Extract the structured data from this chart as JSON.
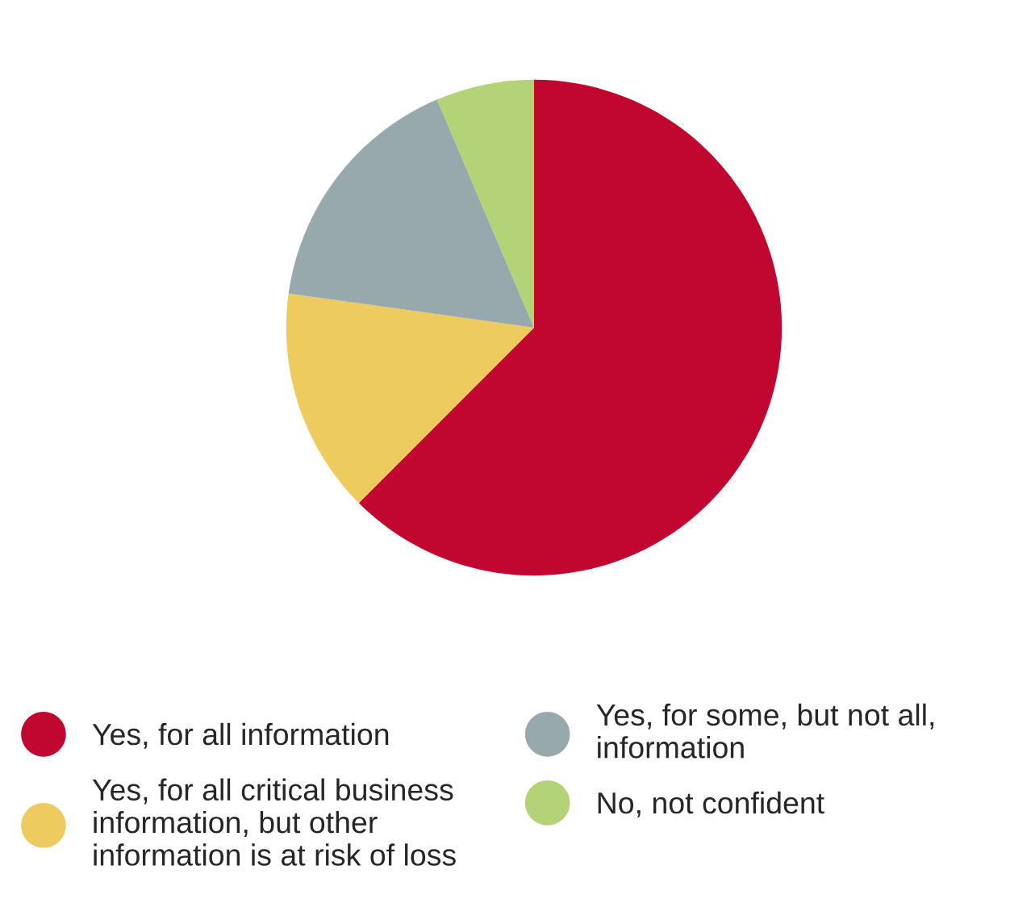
{
  "chart_data": {
    "type": "pie",
    "categories": [
      "Yes, for all information",
      "Yes, for all critical business\ninformation, but other\ninformation is at risk of loss",
      "Yes, for some, but not all,\ninformation",
      "No, not confident"
    ],
    "values": [
      62.5,
      14.7,
      16.4,
      6.4
    ],
    "colors": [
      "#c1072f",
      "#edcb5f",
      "#98a9ae",
      "#b4d276"
    ],
    "legend": "bottom"
  }
}
